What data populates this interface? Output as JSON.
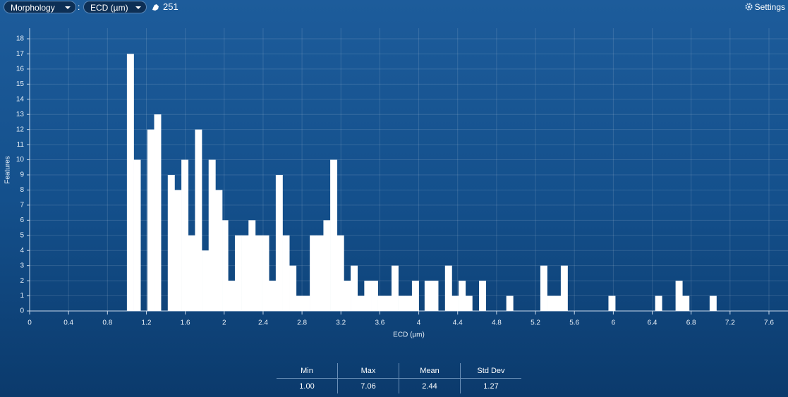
{
  "toolbar": {
    "category": "Morphology",
    "separator": ":",
    "measure": "ECD (µm)",
    "feature_count": "251",
    "settings": "Settings"
  },
  "chart_data": {
    "type": "histogram",
    "xlabel": "ECD (µm)",
    "ylabel": "Features",
    "color": "#ffffff",
    "grid": true,
    "bins": [
      1.0,
      1.07,
      1.14,
      1.21,
      1.28,
      1.35,
      1.42,
      1.49,
      1.56,
      1.63,
      1.7,
      1.77,
      1.84,
      1.91,
      1.98,
      2.04,
      2.11,
      2.18,
      2.25,
      2.32,
      2.39,
      2.46,
      2.53,
      2.6,
      2.67,
      2.74,
      2.81,
      2.88,
      2.95,
      3.02,
      3.09,
      3.16,
      3.23,
      3.3,
      3.37,
      3.44,
      3.51,
      3.58,
      3.65,
      3.72,
      3.79,
      3.86,
      3.93,
      4.0,
      4.06,
      4.13,
      4.2,
      4.27,
      4.34,
      4.41,
      4.48,
      4.55,
      4.62,
      4.69,
      4.76,
      4.83,
      4.9,
      4.97,
      5.04,
      5.11,
      5.18,
      5.25,
      5.32,
      5.39,
      5.46,
      5.53,
      5.6,
      5.67,
      5.74,
      5.81,
      5.88,
      5.95,
      6.02,
      6.09,
      6.15,
      6.22,
      6.29,
      6.36,
      6.43,
      6.5,
      6.57,
      6.64,
      6.71,
      6.78,
      6.85,
      6.92,
      6.99,
      7.06
    ],
    "values": [
      17,
      10,
      0,
      12,
      13,
      0,
      9,
      8,
      10,
      5,
      12,
      4,
      10,
      8,
      6,
      2,
      5,
      5,
      6,
      5,
      5,
      2,
      9,
      5,
      3,
      1,
      1,
      5,
      5,
      6,
      10,
      5,
      2,
      3,
      1,
      2,
      2,
      1,
      1,
      3,
      1,
      1,
      2,
      0,
      2,
      2,
      0,
      3,
      1,
      2,
      1,
      0,
      2,
      0,
      0,
      0,
      1,
      0,
      0,
      0,
      0,
      3,
      1,
      1,
      3,
      0,
      0,
      0,
      0,
      0,
      0,
      1,
      0,
      0,
      0,
      0,
      0,
      0,
      1,
      0,
      0,
      2,
      1,
      0,
      0,
      0,
      1
    ],
    "xlim": [
      0,
      7.6
    ],
    "xticks": [
      0,
      0.4,
      0.8,
      1.2,
      1.6,
      2,
      2.4,
      2.8,
      3.2,
      3.6,
      4,
      4.4,
      4.8,
      5.2,
      5.6,
      6,
      6.4,
      6.8,
      7.2,
      7.6
    ],
    "ylim": [
      0,
      18
    ],
    "yticks": [
      0,
      1,
      2,
      3,
      4,
      5,
      6,
      7,
      8,
      9,
      10,
      11,
      12,
      13,
      14,
      15,
      16,
      17,
      18
    ]
  },
  "stats": {
    "header": [
      "Min",
      "Max",
      "Mean",
      "Std Dev"
    ],
    "row": [
      "1.00",
      "7.06",
      "2.44",
      "1.27"
    ]
  }
}
